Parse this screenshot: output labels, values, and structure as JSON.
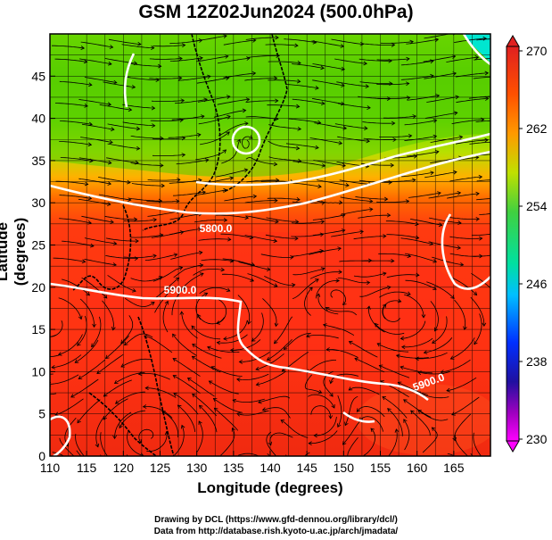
{
  "title": "GSM 12Z02Jun2024 (500.0hPa)",
  "axes": {
    "xlabel": "Longitude (degrees)",
    "ylabel": "Latitude (degrees)",
    "xticks": [
      "110",
      "115",
      "120",
      "125",
      "130",
      "135",
      "140",
      "145",
      "150",
      "155",
      "160",
      "165"
    ],
    "yticks": [
      "0",
      "5",
      "10",
      "15",
      "20",
      "25",
      "30",
      "35",
      "40",
      "45"
    ],
    "xlim": [
      110,
      170
    ],
    "ylim": [
      0,
      50
    ]
  },
  "colorbar": {
    "labels": [
      "270",
      "262",
      "254",
      "246",
      "238",
      "230"
    ],
    "range": [
      230,
      270
    ],
    "colors": [
      "#ff00ff",
      "#4030c0",
      "#0000ff",
      "#00bfff",
      "#00ff80",
      "#40d040",
      "#c0e000",
      "#ff9900",
      "#ff5000",
      "#e02020"
    ]
  },
  "contours": {
    "labels": [
      "5800.0",
      "5900.0",
      "5900.0"
    ]
  },
  "credits": {
    "line1": "Drawing by DCL (https://www.gfd-dennou.org/library/dcl/)",
    "line2": "Data from http://database.rish.kyoto-u.ac.jp/arch/jmadata/"
  }
}
